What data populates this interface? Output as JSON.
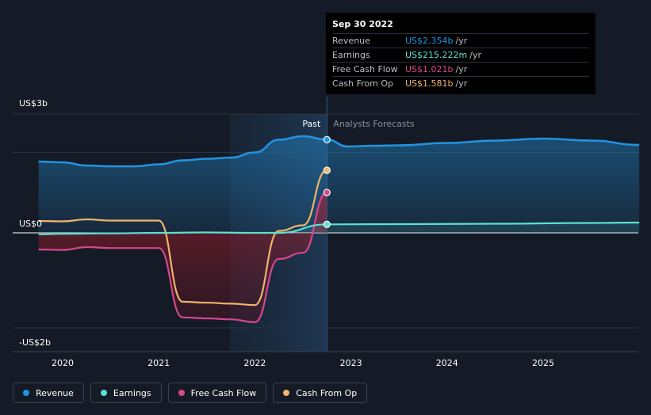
{
  "tooltip": {
    "date": "Sep 30 2022",
    "rows": [
      {
        "label": "Revenue",
        "value": "US$2.354b",
        "unit": "/yr",
        "color": "#2394df"
      },
      {
        "label": "Earnings",
        "value": "US$215.222m",
        "unit": "/yr",
        "color": "#5ce1d0"
      },
      {
        "label": "Free Cash Flow",
        "value": "US$1.021b",
        "unit": "/yr",
        "color": "#d6478d"
      },
      {
        "label": "Cash From Op",
        "value": "US$1.581b",
        "unit": "/yr",
        "color": "#f0b46a"
      }
    ]
  },
  "legend": [
    {
      "label": "Revenue",
      "color": "#2394df"
    },
    {
      "label": "Earnings",
      "color": "#5ce1d0"
    },
    {
      "label": "Free Cash Flow",
      "color": "#d6478d"
    },
    {
      "label": "Cash From Op",
      "color": "#f0b46a"
    }
  ],
  "chart_data": {
    "type": "line",
    "y_unit": "US$ billions",
    "ylim": [
      -2,
      3
    ],
    "ytick_labels": [
      {
        "value": 3,
        "label": "US$3b"
      },
      {
        "value": 0,
        "label": "US$0"
      },
      {
        "value": -2,
        "label": "-US$2b"
      }
    ],
    "xlim": [
      2019.6,
      2026.0
    ],
    "xticks": [
      2020,
      2021,
      2022,
      2023,
      2024,
      2025
    ],
    "past_label": "Past",
    "forecast_label": "Analysts Forecasts",
    "past_end": 2022.75,
    "highlight_start": 2021.74,
    "series": [
      {
        "name": "Revenue",
        "color": "#2394df",
        "past": [
          [
            2019.75,
            1.8
          ],
          [
            2020.0,
            1.78
          ],
          [
            2020.25,
            1.7
          ],
          [
            2020.5,
            1.68
          ],
          [
            2020.75,
            1.68
          ],
          [
            2021.0,
            1.73
          ],
          [
            2021.25,
            1.83
          ],
          [
            2021.5,
            1.87
          ],
          [
            2021.75,
            1.9
          ],
          [
            2022.0,
            2.03
          ],
          [
            2022.25,
            2.35
          ],
          [
            2022.5,
            2.44
          ],
          [
            2022.75,
            2.354
          ]
        ],
        "forecast": [
          [
            2022.75,
            2.354
          ],
          [
            2022.97,
            2.18
          ],
          [
            2023.25,
            2.2
          ],
          [
            2023.5,
            2.21
          ],
          [
            2024.0,
            2.27
          ],
          [
            2024.5,
            2.33
          ],
          [
            2025.0,
            2.38
          ],
          [
            2025.5,
            2.33
          ],
          [
            2026.0,
            2.22
          ]
        ]
      },
      {
        "name": "Earnings",
        "color": "#5ce1d0",
        "past": [
          [
            2019.75,
            -0.03
          ],
          [
            2020.0,
            -0.02
          ],
          [
            2020.5,
            -0.01
          ],
          [
            2021.0,
            0.0
          ],
          [
            2021.5,
            0.01
          ],
          [
            2022.0,
            0.0
          ],
          [
            2022.25,
            0.0
          ],
          [
            2022.75,
            0.215
          ]
        ],
        "forecast": [
          [
            2022.75,
            0.215
          ],
          [
            2023.5,
            0.22
          ],
          [
            2024.5,
            0.23
          ],
          [
            2025.5,
            0.25
          ],
          [
            2026.0,
            0.26
          ]
        ]
      },
      {
        "name": "Free Cash Flow",
        "color": "#d6478d",
        "past": [
          [
            2019.75,
            -0.35
          ],
          [
            2020.0,
            -0.36
          ],
          [
            2020.25,
            -0.3
          ],
          [
            2020.5,
            -0.32
          ],
          [
            2020.75,
            -0.32
          ],
          [
            2021.0,
            -0.32
          ],
          [
            2021.25,
            -1.78
          ],
          [
            2021.5,
            -1.8
          ],
          [
            2021.75,
            -1.82
          ],
          [
            2022.0,
            -1.88
          ],
          [
            2022.25,
            -0.55
          ],
          [
            2022.5,
            -0.42
          ],
          [
            2022.75,
            1.021
          ]
        ]
      },
      {
        "name": "Cash From Op",
        "color": "#f0b46a",
        "past": [
          [
            2019.75,
            0.3
          ],
          [
            2020.0,
            0.29
          ],
          [
            2020.25,
            0.34
          ],
          [
            2020.5,
            0.31
          ],
          [
            2020.75,
            0.31
          ],
          [
            2021.0,
            0.31
          ],
          [
            2021.25,
            -1.45
          ],
          [
            2021.5,
            -1.47
          ],
          [
            2021.75,
            -1.49
          ],
          [
            2022.0,
            -1.52
          ],
          [
            2022.25,
            0.05
          ],
          [
            2022.5,
            0.19
          ],
          [
            2022.75,
            1.581
          ]
        ]
      }
    ]
  }
}
